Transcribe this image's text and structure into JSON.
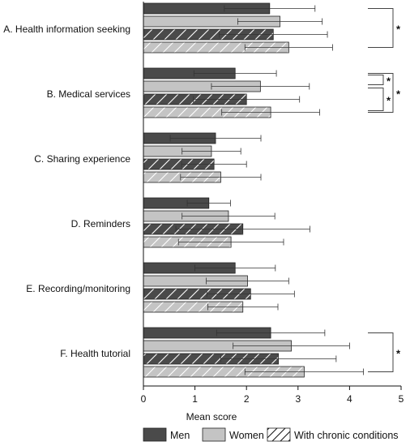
{
  "chart_data": {
    "type": "bar",
    "orientation": "horizontal",
    "categories": [
      "A. Health information seeking",
      "B. Medical services",
      "C. Sharing experience",
      "D. Reminders",
      "E. Recording/monitoring",
      "F. Health tutorial"
    ],
    "series": [
      {
        "name": "Men",
        "color": "#4a4a4a",
        "pattern": "solid",
        "values": [
          2.45,
          1.78,
          1.4,
          1.27,
          1.78,
          2.47
        ],
        "error": [
          0.88,
          0.8,
          0.88,
          0.42,
          0.78,
          1.05
        ]
      },
      {
        "name": "Women",
        "color": "#c4c4c4",
        "pattern": "solid",
        "values": [
          2.65,
          2.27,
          1.32,
          1.65,
          2.02,
          2.87
        ],
        "error": [
          0.82,
          0.95,
          0.57,
          0.9,
          0.8,
          1.13
        ]
      },
      {
        "name": "",
        "color": "#4a4a4a",
        "pattern": "hatched",
        "values": [
          2.52,
          2.0,
          1.37,
          1.93,
          2.08,
          2.62
        ],
        "error": [
          1.05,
          1.03,
          0.63,
          1.3,
          0.85,
          1.12
        ]
      },
      {
        "name": "With chronic conditions",
        "color": "#c4c4c4",
        "pattern": "hatched",
        "values": [
          2.82,
          2.47,
          1.5,
          1.7,
          1.93,
          3.12
        ],
        "error": [
          0.85,
          0.95,
          0.78,
          1.02,
          0.68,
          1.15
        ]
      }
    ],
    "xlabel": "Mean score",
    "ylabel": "",
    "xlim": [
      0,
      5
    ],
    "xticks": [
      0,
      1,
      2,
      3,
      4,
      5
    ],
    "significance": [
      {
        "category": "A. Health information seeking",
        "between": [
          "Men",
          "With chronic conditions"
        ],
        "label": "*"
      },
      {
        "category": "B. Medical services",
        "between": [
          "Men",
          "Women"
        ],
        "label": "*"
      },
      {
        "category": "B. Medical services",
        "between": [
          "Men",
          "With chronic conditions"
        ],
        "label": "*"
      },
      {
        "category": "B. Medical services",
        "between": [
          "Women",
          "With chronic conditions"
        ],
        "label": "*"
      },
      {
        "category": "F. Health tutorial",
        "between": [
          "Men",
          "With chronic conditions"
        ],
        "label": "*"
      }
    ],
    "legend": [
      "Men",
      "Women",
      "With chronic conditions"
    ],
    "legend_position": "bottom",
    "grid": false
  }
}
